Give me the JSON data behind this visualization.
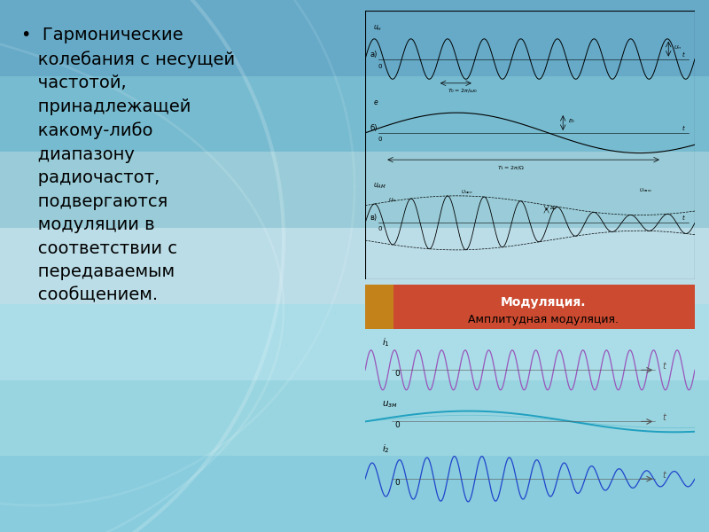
{
  "modulation_title1": "Модуляция.",
  "modulation_title2": "Амплитудная модуляция.",
  "panel_bg": "#f5f0d0",
  "header_bg": "#cc4a30",
  "purple_color": "#9955bb",
  "blue_color": "#2244cc",
  "cyan_color": "#20a0c0",
  "diagram_bg": "#ffffff",
  "bg_gradient": [
    "#88ccdd",
    "#99d5e0",
    "#aadde8",
    "#bbdde8",
    "#99ccd8",
    "#77bbd0",
    "#66aac8"
  ],
  "text_color": "#111111",
  "bullet_text": "•  Гармонические\n   колебания с несущей\n   частотой,\n   принадлежащей\n   какому-либо\n   диапазону\n   радиочастот,\n   подвергаются\n   модуляции в\n   соответствии с\n   передаваемым\n   сообщением."
}
